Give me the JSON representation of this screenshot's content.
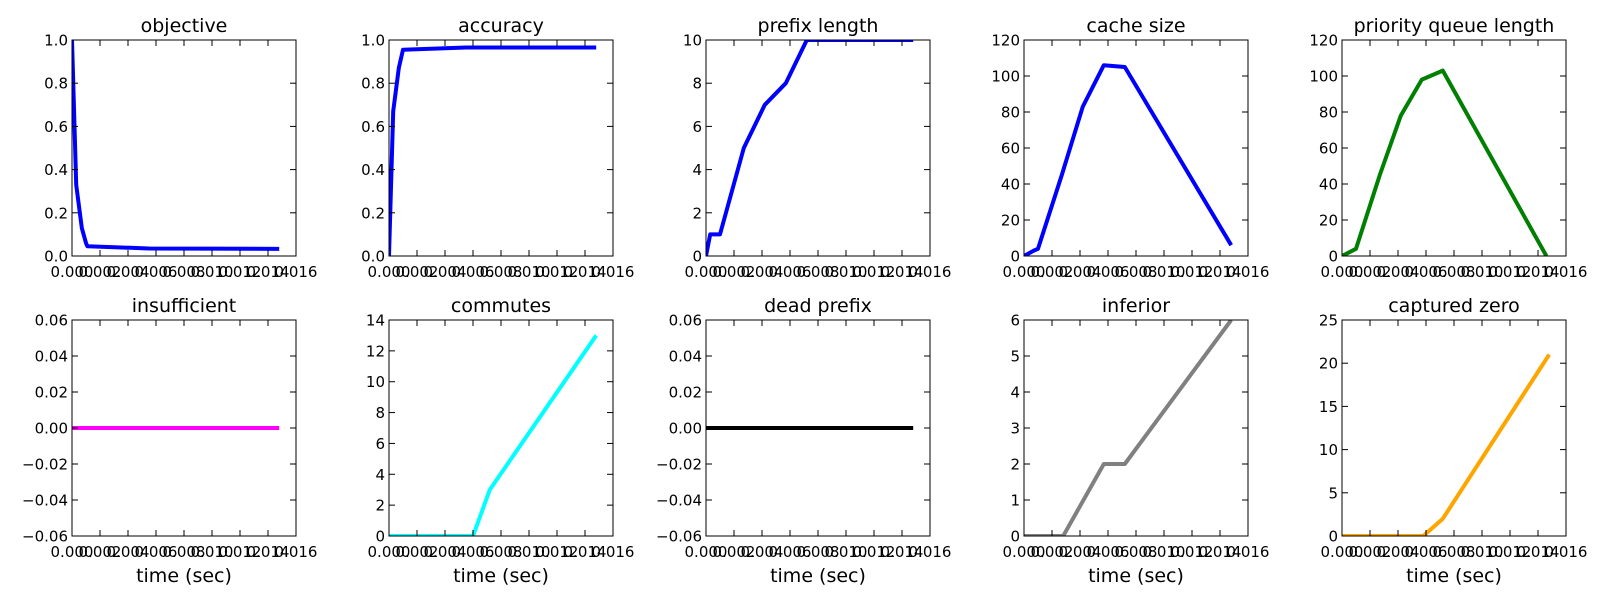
{
  "chart_data": [
    {
      "type": "line",
      "title": "objective",
      "xlabel": "",
      "ylabel": "",
      "xlim": [
        0,
        0.016
      ],
      "ylim": [
        0,
        1.0
      ],
      "xticks": [
        0,
        0.002,
        0.004,
        0.006,
        0.008,
        0.01,
        0.012,
        0.014,
        0.016
      ],
      "xtick_labels": [
        "0.000",
        "0.002",
        "0.004",
        "0.006",
        "0.008",
        "0.010",
        "0.012",
        "0.014",
        "0.016"
      ],
      "yticks": [
        0,
        0.2,
        0.4,
        0.6,
        0.8,
        1.0
      ],
      "ytick_labels": [
        "0.0",
        "0.2",
        "0.4",
        "0.6",
        "0.8",
        "1.0"
      ],
      "grid": false,
      "color": "#0000ff",
      "x": [
        0,
        0.0003,
        0.0007,
        0.001,
        0.0011,
        0.0055,
        0.0148
      ],
      "y": [
        1.0,
        0.33,
        0.13,
        0.06,
        0.045,
        0.035,
        0.033
      ]
    },
    {
      "type": "line",
      "title": "accuracy",
      "xlabel": "",
      "ylabel": "",
      "xlim": [
        0,
        0.016
      ],
      "ylim": [
        0,
        1.0
      ],
      "xticks": [
        0,
        0.002,
        0.004,
        0.006,
        0.008,
        0.01,
        0.012,
        0.014,
        0.016
      ],
      "xtick_labels": [
        "0.000",
        "0.002",
        "0.004",
        "0.006",
        "0.008",
        "0.010",
        "0.012",
        "0.014",
        "0.016"
      ],
      "yticks": [
        0,
        0.2,
        0.4,
        0.6,
        0.8,
        1.0
      ],
      "ytick_labels": [
        "0.0",
        "0.2",
        "0.4",
        "0.6",
        "0.8",
        "1.0"
      ],
      "grid": false,
      "color": "#0000ff",
      "x": [
        0,
        0.0003,
        0.0007,
        0.001,
        0.0055,
        0.0148
      ],
      "y": [
        0,
        0.67,
        0.87,
        0.955,
        0.965,
        0.965
      ]
    },
    {
      "type": "line",
      "title": "prefix length",
      "xlabel": "",
      "ylabel": "",
      "xlim": [
        0,
        0.016
      ],
      "ylim": [
        0,
        10
      ],
      "xticks": [
        0,
        0.002,
        0.004,
        0.006,
        0.008,
        0.01,
        0.012,
        0.014,
        0.016
      ],
      "xtick_labels": [
        "0.000",
        "0.002",
        "0.004",
        "0.006",
        "0.008",
        "0.010",
        "0.012",
        "0.014",
        "0.016"
      ],
      "yticks": [
        0,
        2,
        4,
        6,
        8,
        10
      ],
      "ytick_labels": [
        "0",
        "2",
        "4",
        "6",
        "8",
        "10"
      ],
      "grid": false,
      "color": "#0000ff",
      "x": [
        0,
        0.0003,
        0.001,
        0.0027,
        0.0042,
        0.0057,
        0.0072,
        0.0148
      ],
      "y": [
        0,
        1,
        1,
        5,
        7,
        8,
        10,
        10
      ]
    },
    {
      "type": "line",
      "title": "cache size",
      "xlabel": "",
      "ylabel": "",
      "xlim": [
        0,
        0.016
      ],
      "ylim": [
        0,
        120
      ],
      "xticks": [
        0,
        0.002,
        0.004,
        0.006,
        0.008,
        0.01,
        0.012,
        0.014,
        0.016
      ],
      "xtick_labels": [
        "0.000",
        "0.002",
        "0.004",
        "0.006",
        "0.008",
        "0.010",
        "0.012",
        "0.014",
        "0.016"
      ],
      "yticks": [
        0,
        20,
        40,
        60,
        80,
        100,
        120
      ],
      "ytick_labels": [
        "0",
        "20",
        "40",
        "60",
        "80",
        "100",
        "120"
      ],
      "grid": false,
      "color": "#0000ff",
      "x": [
        0,
        0.0007,
        0.001,
        0.0027,
        0.0042,
        0.0057,
        0.0072,
        0.0148
      ],
      "y": [
        0,
        3,
        4,
        45,
        83,
        106,
        105,
        6
      ]
    },
    {
      "type": "line",
      "title": "priority queue length",
      "xlabel": "",
      "ylabel": "",
      "xlim": [
        0,
        0.016
      ],
      "ylim": [
        0,
        120
      ],
      "xticks": [
        0,
        0.002,
        0.004,
        0.006,
        0.008,
        0.01,
        0.012,
        0.014,
        0.016
      ],
      "xtick_labels": [
        "0.000",
        "0.002",
        "0.004",
        "0.006",
        "0.008",
        "0.010",
        "0.012",
        "0.014",
        "0.016"
      ],
      "yticks": [
        0,
        20,
        40,
        60,
        80,
        100,
        120
      ],
      "ytick_labels": [
        "0",
        "20",
        "40",
        "60",
        "80",
        "100",
        "120"
      ],
      "grid": false,
      "color": "#008000",
      "x": [
        0,
        0.001,
        0.0027,
        0.0042,
        0.0057,
        0.0072,
        0.0146
      ],
      "y": [
        0,
        4,
        45,
        78,
        98,
        103,
        0
      ]
    },
    {
      "type": "line",
      "title": "insufficient",
      "xlabel": "time (sec)",
      "ylabel": "",
      "xlim": [
        0,
        0.016
      ],
      "ylim": [
        -0.06,
        0.06
      ],
      "xticks": [
        0,
        0.002,
        0.004,
        0.006,
        0.008,
        0.01,
        0.012,
        0.014,
        0.016
      ],
      "xtick_labels": [
        "0.000",
        "0.002",
        "0.004",
        "0.006",
        "0.008",
        "0.010",
        "0.012",
        "0.014",
        "0.016"
      ],
      "yticks": [
        -0.06,
        -0.04,
        -0.02,
        0,
        0.02,
        0.04,
        0.06
      ],
      "ytick_labels": [
        "−0.06",
        "−0.04",
        "−0.02",
        "0.00",
        "0.02",
        "0.04",
        "0.06"
      ],
      "grid": false,
      "color": "#ff00ff",
      "x": [
        0,
        0.0148
      ],
      "y": [
        0,
        0
      ]
    },
    {
      "type": "line",
      "title": "commutes",
      "xlabel": "time (sec)",
      "ylabel": "",
      "xlim": [
        0,
        0.016
      ],
      "ylim": [
        0,
        14
      ],
      "xticks": [
        0,
        0.002,
        0.004,
        0.006,
        0.008,
        0.01,
        0.012,
        0.014,
        0.016
      ],
      "xtick_labels": [
        "0.000",
        "0.002",
        "0.004",
        "0.006",
        "0.008",
        "0.010",
        "0.012",
        "0.014",
        "0.016"
      ],
      "yticks": [
        0,
        2,
        4,
        6,
        8,
        10,
        12,
        14
      ],
      "ytick_labels": [
        "0",
        "2",
        "4",
        "6",
        "8",
        "10",
        "12",
        "14"
      ],
      "grid": false,
      "color": "#00ffff",
      "x": [
        0,
        0.006,
        0.0072,
        0.0148
      ],
      "y": [
        0,
        0,
        3,
        13
      ]
    },
    {
      "type": "line",
      "title": "dead prefix",
      "xlabel": "time (sec)",
      "ylabel": "",
      "xlim": [
        0,
        0.016
      ],
      "ylim": [
        -0.06,
        0.06
      ],
      "xticks": [
        0,
        0.002,
        0.004,
        0.006,
        0.008,
        0.01,
        0.012,
        0.014,
        0.016
      ],
      "xtick_labels": [
        "0.000",
        "0.002",
        "0.004",
        "0.006",
        "0.008",
        "0.010",
        "0.012",
        "0.014",
        "0.016"
      ],
      "yticks": [
        -0.06,
        -0.04,
        -0.02,
        0,
        0.02,
        0.04,
        0.06
      ],
      "ytick_labels": [
        "−0.06",
        "−0.04",
        "−0.02",
        "0.00",
        "0.02",
        "0.04",
        "0.06"
      ],
      "grid": false,
      "color": "#000000",
      "x": [
        0,
        0.0148
      ],
      "y": [
        0,
        0
      ]
    },
    {
      "type": "line",
      "title": "inferior",
      "xlabel": "time (sec)",
      "ylabel": "",
      "xlim": [
        0,
        0.016
      ],
      "ylim": [
        0,
        6
      ],
      "xticks": [
        0,
        0.002,
        0.004,
        0.006,
        0.008,
        0.01,
        0.012,
        0.014,
        0.016
      ],
      "xtick_labels": [
        "0.000",
        "0.002",
        "0.004",
        "0.006",
        "0.008",
        "0.010",
        "0.012",
        "0.014",
        "0.016"
      ],
      "yticks": [
        0,
        1,
        2,
        3,
        4,
        5,
        6
      ],
      "ytick_labels": [
        "0",
        "1",
        "2",
        "3",
        "4",
        "5",
        "6"
      ],
      "grid": false,
      "color": "#808080",
      "x": [
        0,
        0.0028,
        0.0057,
        0.0072,
        0.0148
      ],
      "y": [
        0,
        0,
        2,
        2,
        6
      ]
    },
    {
      "type": "line",
      "title": "captured zero",
      "xlabel": "time (sec)",
      "ylabel": "",
      "xlim": [
        0,
        0.016
      ],
      "ylim": [
        0,
        25
      ],
      "xticks": [
        0,
        0.002,
        0.004,
        0.006,
        0.008,
        0.01,
        0.012,
        0.014,
        0.016
      ],
      "xtick_labels": [
        "0.000",
        "0.002",
        "0.004",
        "0.006",
        "0.008",
        "0.010",
        "0.012",
        "0.014",
        "0.016"
      ],
      "yticks": [
        0,
        5,
        10,
        15,
        20,
        25
      ],
      "ytick_labels": [
        "0",
        "5",
        "10",
        "15",
        "20",
        "25"
      ],
      "grid": false,
      "color": "#ffa500",
      "x": [
        0,
        0.0058,
        0.0072,
        0.0148
      ],
      "y": [
        0,
        0,
        2,
        21
      ]
    }
  ]
}
